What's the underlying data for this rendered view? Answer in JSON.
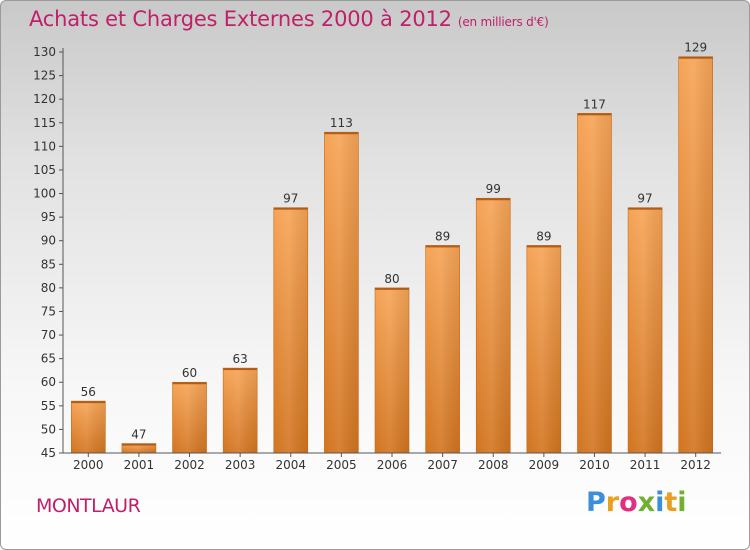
{
  "header": {
    "title": "Achats et Charges Externes 2000 à 2012",
    "subtitle": "(en milliers d'€)"
  },
  "footer": {
    "commune": "MONTLAUR",
    "brand_letters": [
      "P",
      "r",
      "o",
      "x",
      "i",
      "t",
      "i"
    ],
    "brand_colors": [
      "#3a8fd8",
      "#e8a020",
      "#e03080",
      "#70b030",
      "#3a8fd8",
      "#e8a020",
      "#70b030"
    ]
  },
  "colors": {
    "title": "#c0206a",
    "bar_light": "#f6a456",
    "bar_dark": "#d2741f",
    "axis_text": "#333333"
  },
  "chart_data": {
    "type": "bar",
    "categories": [
      "2000",
      "2001",
      "2002",
      "2003",
      "2004",
      "2005",
      "2006",
      "2007",
      "2008",
      "2009",
      "2010",
      "2011",
      "2012"
    ],
    "values": [
      56,
      47,
      60,
      63,
      97,
      113,
      80,
      89,
      99,
      89,
      117,
      97,
      129
    ],
    "data_labels": [
      "56",
      "47",
      "60",
      "63",
      "97",
      "113",
      "80",
      "89",
      "99",
      "89",
      "117",
      "97",
      "129"
    ],
    "ylim": [
      45,
      130
    ],
    "yticks": [
      45,
      50,
      55,
      60,
      65,
      70,
      75,
      80,
      85,
      90,
      95,
      100,
      105,
      110,
      115,
      120,
      125,
      130
    ],
    "ytick_labels": [
      "45",
      "50",
      "55",
      "60",
      "65",
      "70",
      "75",
      "80",
      "85",
      "90",
      "95",
      "100",
      "105",
      "110",
      "115",
      "120",
      "125",
      "130"
    ],
    "title": "Achats et Charges Externes 2000 à 2012",
    "xlabel": "",
    "ylabel": "",
    "grid": false
  }
}
